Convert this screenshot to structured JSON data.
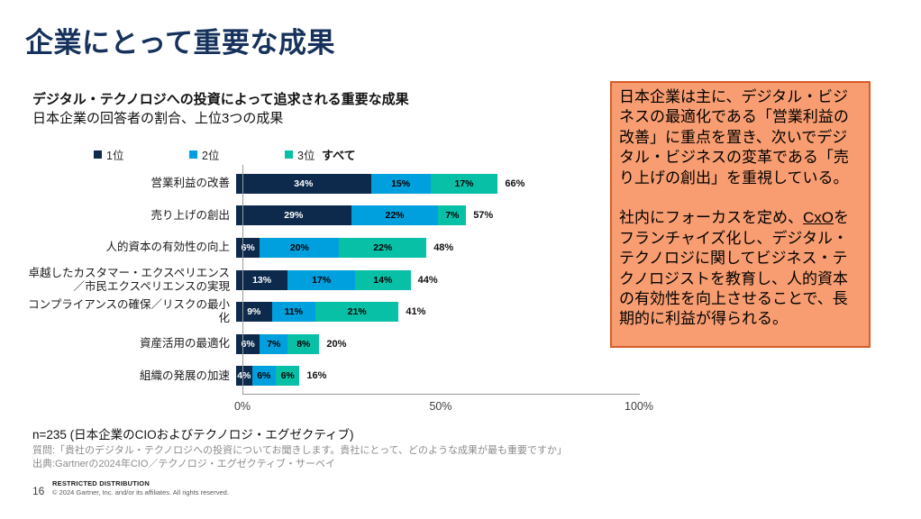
{
  "slide": {
    "title": "企業にとって重要な成果",
    "subtitle_bold": "デジタル・テクノロジへの投資によって追求される重要な成果",
    "subtitle_regular": "日本企業の回答者の割合、上位3つの成果"
  },
  "legend": {
    "items": [
      {
        "label": "1位",
        "color": "#0d2a4d"
      },
      {
        "label": "2位",
        "color": "#009fdd"
      },
      {
        "label": "3位",
        "color": "#08c0a6"
      }
    ],
    "all_label": "すべて"
  },
  "chart_data": {
    "type": "bar",
    "orientation": "horizontal",
    "stacked": true,
    "title": "デジタル・テクノロジへの投資によって追求される重要な成果",
    "categories": [
      "営業利益の改善",
      "売り上げの創出",
      "人的資本の有効性の向上",
      "卓越したカスタマー・エクスペリエンス／市民エクスペリエンスの実現",
      "コンプライアンスの確保／リスクの最小化",
      "資産活用の最適化",
      "組織の発展の加速"
    ],
    "series": [
      {
        "name": "1位",
        "color": "#0d2a4d",
        "values": [
          34,
          29,
          6,
          13,
          9,
          6,
          4
        ]
      },
      {
        "name": "2位",
        "color": "#009fdd",
        "values": [
          15,
          22,
          20,
          17,
          11,
          7,
          6
        ]
      },
      {
        "name": "3位",
        "color": "#08c0a6",
        "values": [
          17,
          7,
          22,
          14,
          21,
          8,
          6
        ]
      }
    ],
    "totals": [
      "66%",
      "57%",
      "48%",
      "44%",
      "41%",
      "20%",
      "16%"
    ],
    "x_ticks": [
      "0%",
      "50%",
      "100%"
    ],
    "xlim": [
      0,
      100
    ],
    "grid": false,
    "legend_position": "top"
  },
  "callout": {
    "background": "#f89d71",
    "border_color": "#d95b27",
    "p1": "日本企業は主に、デジタル・ビジネスの最適化である「営業利益の改善」に重点を置き、次いでデジタル・ビジネスの変革である「売り上げの創出」を重視している。",
    "p2_before": "社内にフォーカスを定め、",
    "p2_link": "CxO",
    "p2_after": "をフランチャイズ化し、デジタル・テクノロジに関してビジネス・テクノロジストを教育し、人的資本の有効性を向上させることで、長期的に利益が得られる。"
  },
  "footnotes": {
    "n_line": "n=235 (日本企業のCIOおよびテクノロジ・エグゼクティブ)",
    "question": "質問:「貴社のデジタル・テクノロジへの投資についてお聞きします。貴社にとって、どのような成果が最も重要ですか」",
    "source": "出典:Gartnerの2024年CIO／テクノロジ・エグゼクティブ・サーベイ"
  },
  "footer": {
    "page_number": "16",
    "restricted": "RESTRICTED DISTRIBUTION",
    "copyright": "© 2024 Gartner, Inc. and/or its affiliates. All rights reserved."
  }
}
